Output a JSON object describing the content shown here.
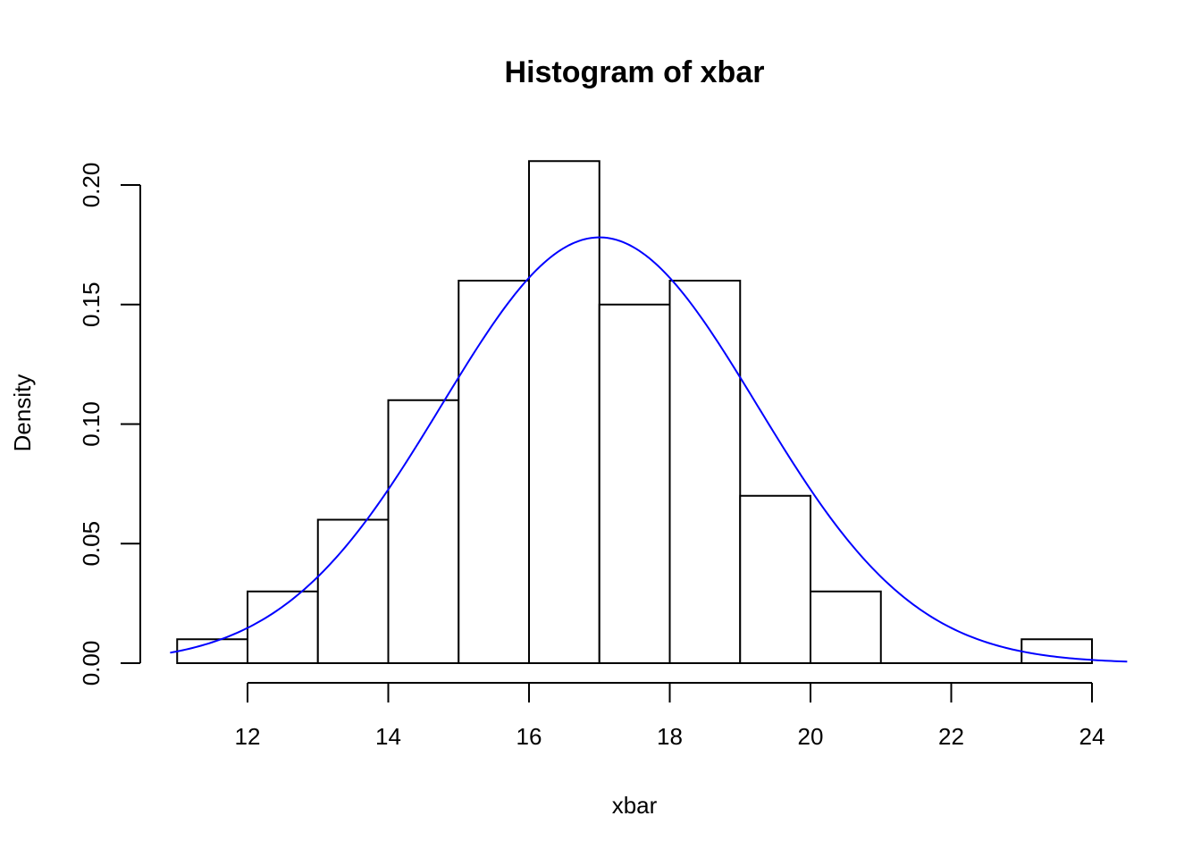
{
  "chart_data": {
    "type": "bar",
    "subtype": "histogram",
    "title": "Histogram of xbar",
    "xlabel": "xbar",
    "ylabel": "Density",
    "xlim": [
      11,
      24.5
    ],
    "ylim": [
      0,
      0.21
    ],
    "x_ticks": [
      12,
      14,
      16,
      18,
      20,
      22,
      24
    ],
    "y_ticks": [
      0.0,
      0.05,
      0.1,
      0.15,
      0.2
    ],
    "x_tick_labels": [
      "12",
      "14",
      "16",
      "18",
      "20",
      "22",
      "24"
    ],
    "y_tick_labels": [
      "0.00",
      "0.05",
      "0.10",
      "0.15",
      "0.20"
    ],
    "bin_edges": [
      11,
      12,
      13,
      14,
      15,
      16,
      17,
      18,
      19,
      20,
      21,
      22,
      23,
      24
    ],
    "values": [
      0.01,
      0.03,
      0.06,
      0.11,
      0.16,
      0.21,
      0.15,
      0.16,
      0.07,
      0.03,
      0.0,
      0.0,
      0.01
    ],
    "density_curve": {
      "type": "normal",
      "mean": 17,
      "sd": 2.24,
      "x_range": [
        10.9,
        24.5
      ],
      "color": "#0000ff"
    },
    "grid": false
  }
}
